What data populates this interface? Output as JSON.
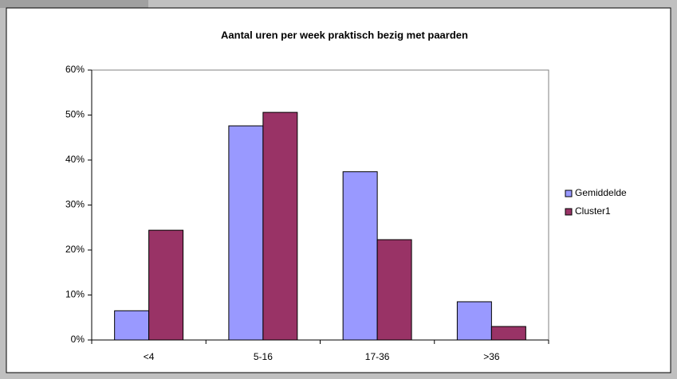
{
  "chart_data": {
    "type": "bar",
    "title": "Aantal uren per week praktisch bezig met paarden",
    "categories": [
      "<4",
      "5-16",
      "17-36",
      ">36"
    ],
    "series": [
      {
        "name": "Gemiddelde",
        "color": "#9999ff",
        "values": [
          6.5,
          47.6,
          37.4,
          8.5
        ]
      },
      {
        "name": "Cluster1",
        "color": "#993366",
        "values": [
          24.4,
          50.6,
          22.3,
          3.0
        ]
      }
    ],
    "ylim": [
      0,
      60
    ],
    "yticks": [
      {
        "value": 0,
        "label": "0%"
      },
      {
        "value": 10,
        "label": "10%"
      },
      {
        "value": 20,
        "label": "20%"
      },
      {
        "value": 30,
        "label": "30%"
      },
      {
        "value": 40,
        "label": "40%"
      },
      {
        "value": 50,
        "label": "50%"
      },
      {
        "value": 60,
        "label": "60%"
      }
    ],
    "legend": "right"
  }
}
